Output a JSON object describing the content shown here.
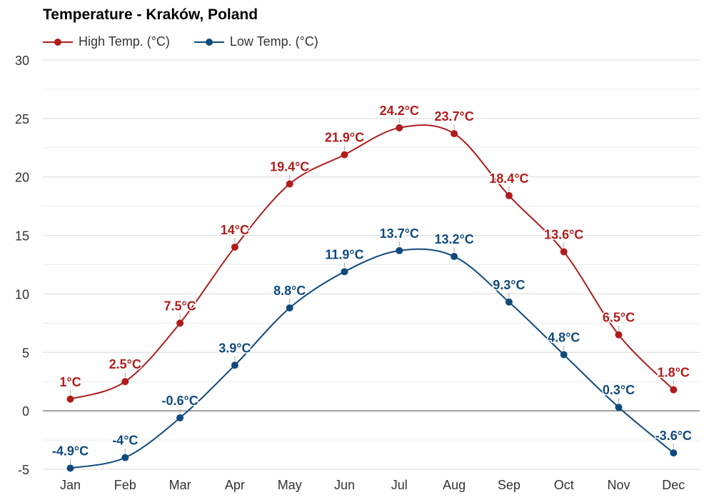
{
  "chart_data": {
    "type": "line",
    "title": "Temperature - Kraków, Poland",
    "categories": [
      "Jan",
      "Feb",
      "Mar",
      "Apr",
      "May",
      "Jun",
      "Jul",
      "Aug",
      "Sep",
      "Oct",
      "Nov",
      "Dec"
    ],
    "series": [
      {
        "name": "High Temp. (°C)",
        "color": "#b01c1c",
        "values": [
          1,
          2.5,
          7.5,
          14,
          19.4,
          21.9,
          24.2,
          23.7,
          18.4,
          13.6,
          6.5,
          1.8
        ],
        "labels": [
          "1°C",
          "2.5°C",
          "7.5°C",
          "14°C",
          "19.4°C",
          "21.9°C",
          "24.2°C",
          "23.7°C",
          "18.4°C",
          "13.6°C",
          "6.5°C",
          "1.8°C"
        ]
      },
      {
        "name": "Low Temp. (°C)",
        "color": "#0f4a7d",
        "values": [
          -4.9,
          -4,
          -0.6,
          3.9,
          8.8,
          11.9,
          13.7,
          13.2,
          9.3,
          4.8,
          0.3,
          -3.6
        ],
        "labels": [
          "-4.9°C",
          "-4°C",
          "-0.6°C",
          "3.9°C",
          "8.8°C",
          "11.9°C",
          "13.7°C",
          "13.2°C",
          "9.3°C",
          "4.8°C",
          "0.3°C",
          "-3.6°C"
        ]
      }
    ],
    "ylim": [
      -5,
      30
    ],
    "yticks": [
      -5,
      0,
      5,
      10,
      15,
      20,
      25,
      30
    ],
    "ytick_labels": [
      "-5",
      "0",
      "5",
      "10",
      "15",
      "20",
      "25",
      "30"
    ],
    "grid": true,
    "legend_position": "top-left"
  }
}
